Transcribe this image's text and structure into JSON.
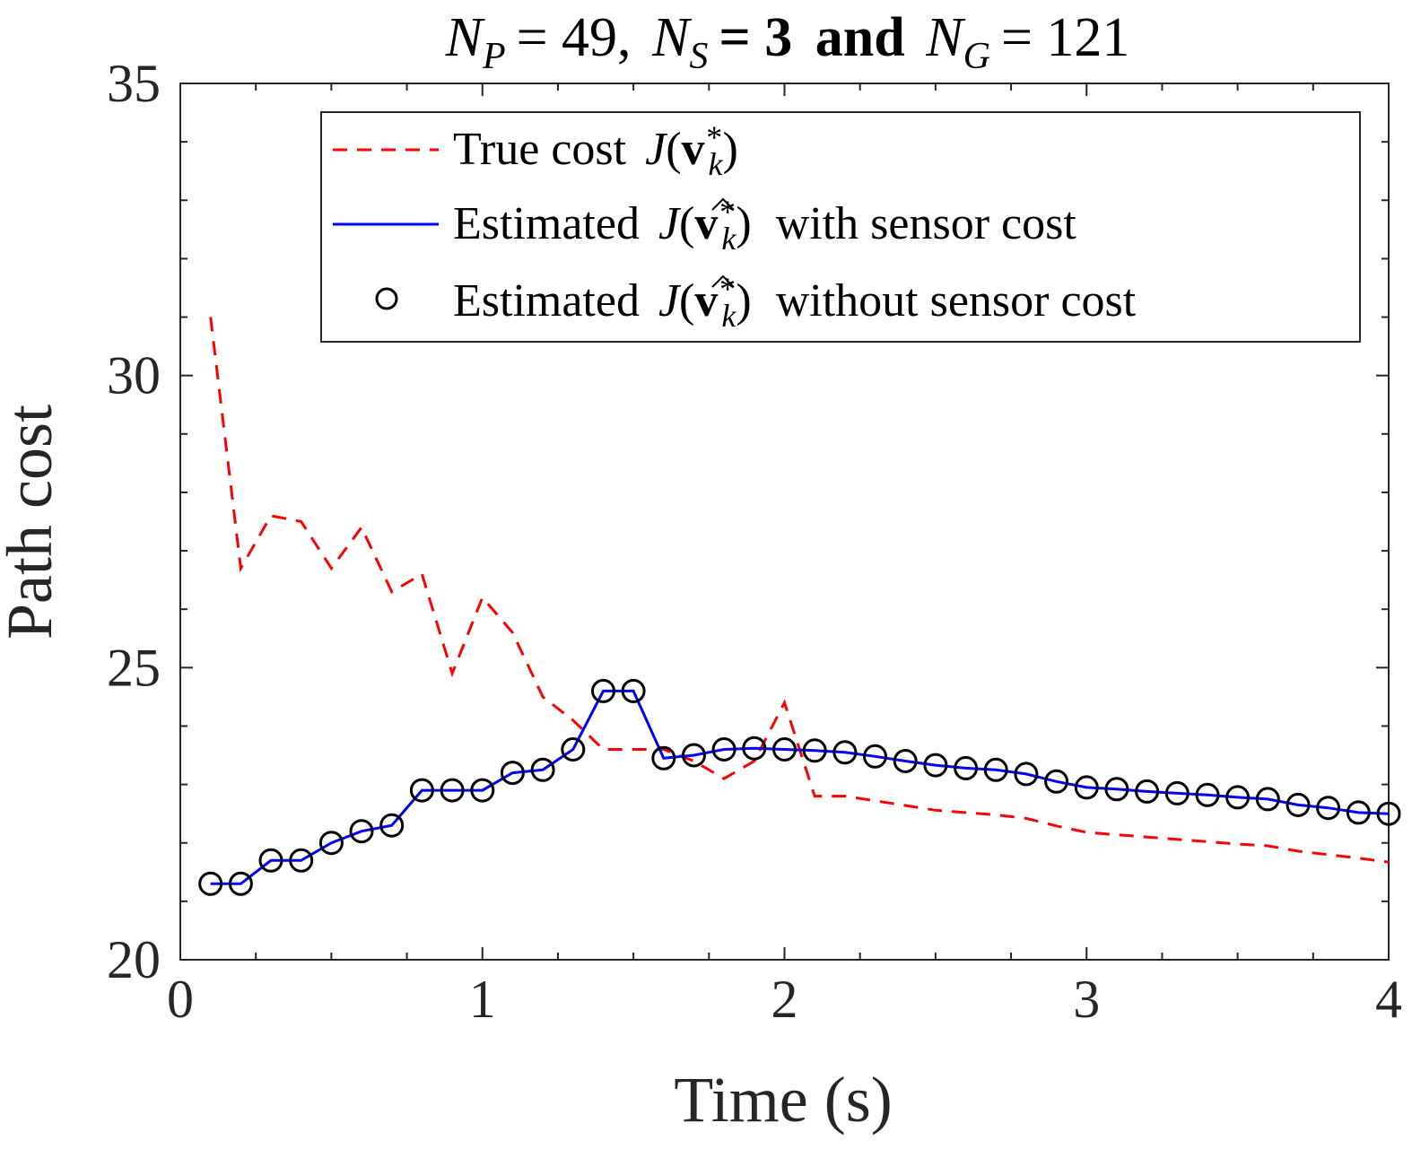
{
  "chart_data": {
    "type": "line",
    "title": {
      "np_sym": "N",
      "np_sub": "P",
      "np_val": "= 49,",
      "ns_sym": "N",
      "ns_sub": "S",
      "ns_val": "= 3",
      "and": "and",
      "ng_sym": "N",
      "ng_sub": "G",
      "ng_val": "= 121"
    },
    "xlabel": "Time (s)",
    "ylabel": "Path cost",
    "xlim": [
      0,
      4
    ],
    "ylim": [
      20,
      35
    ],
    "xticks": [
      0,
      1,
      2,
      3,
      4
    ],
    "xtick_labels": [
      "0",
      "1",
      "2",
      "3",
      "4"
    ],
    "yticks": [
      20,
      25,
      30,
      35
    ],
    "ytick_labels": [
      "20",
      "25",
      "30",
      "35"
    ],
    "grid": false,
    "legend_position": "top-right",
    "x": [
      0.1,
      0.2,
      0.3,
      0.4,
      0.5,
      0.6,
      0.7,
      0.8,
      0.9,
      1.0,
      1.1,
      1.2,
      1.3,
      1.4,
      1.5,
      1.6,
      1.7,
      1.8,
      1.9,
      2.0,
      2.1,
      2.2,
      2.3,
      2.4,
      2.5,
      2.6,
      2.7,
      2.8,
      2.9,
      3.0,
      3.1,
      3.2,
      3.3,
      3.4,
      3.5,
      3.6,
      3.7,
      3.8,
      3.9,
      4.0
    ],
    "series": [
      {
        "name": "True cost",
        "legend_label": "True cost",
        "color": "#ff0000",
        "style": "dashed",
        "values": [
          31.0,
          26.7,
          27.6,
          27.5,
          26.7,
          27.4,
          26.3,
          26.6,
          24.9,
          26.2,
          25.6,
          24.5,
          24.1,
          23.6,
          23.6,
          23.6,
          23.4,
          23.1,
          23.4,
          24.4,
          22.8,
          22.8,
          22.72,
          22.64,
          22.56,
          22.52,
          22.48,
          22.42,
          22.29,
          22.18,
          22.14,
          22.1,
          22.06,
          22.02,
          21.98,
          21.95,
          21.86,
          21.8,
          21.74,
          21.67
        ]
      },
      {
        "name": "Estimated with sensor cost",
        "legend_label": "Estimated",
        "legend_suffix": "with sensor cost",
        "color": "#0000ff",
        "style": "solid",
        "values": [
          21.3,
          21.3,
          21.7,
          21.7,
          22.0,
          22.2,
          22.3,
          22.9,
          22.9,
          22.9,
          23.2,
          23.25,
          23.6,
          24.6,
          24.6,
          23.45,
          23.5,
          23.6,
          23.62,
          23.6,
          23.58,
          23.55,
          23.48,
          23.4,
          23.33,
          23.28,
          23.25,
          23.18,
          23.05,
          22.95,
          22.92,
          22.88,
          22.85,
          22.82,
          22.78,
          22.75,
          22.65,
          22.6,
          22.52,
          22.5
        ]
      },
      {
        "name": "Estimated without sensor cost",
        "legend_label": "Estimated",
        "legend_suffix": "without sensor cost",
        "color": "#000000",
        "style": "markers",
        "marker": "circle",
        "values": [
          21.3,
          21.3,
          21.7,
          21.7,
          22.0,
          22.2,
          22.3,
          22.9,
          22.9,
          22.9,
          23.2,
          23.25,
          23.6,
          24.6,
          24.6,
          23.45,
          23.5,
          23.6,
          23.62,
          23.6,
          23.58,
          23.55,
          23.48,
          23.4,
          23.33,
          23.28,
          23.25,
          23.18,
          23.05,
          22.95,
          22.92,
          22.88,
          22.85,
          22.82,
          22.78,
          22.75,
          22.65,
          22.6,
          22.52,
          22.5
        ]
      }
    ]
  }
}
